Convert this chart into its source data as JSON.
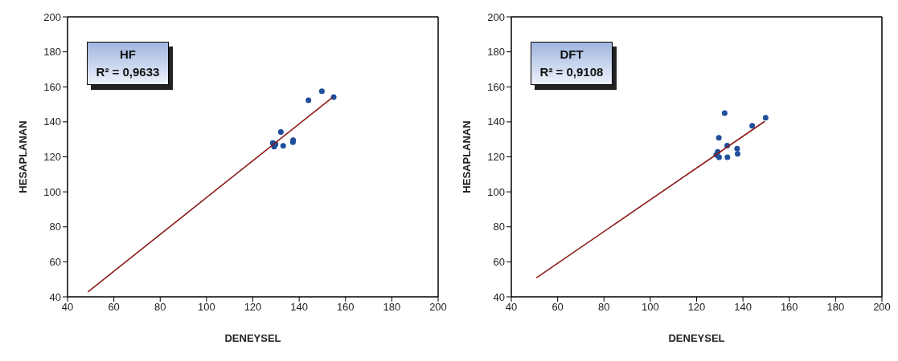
{
  "chart_data": [
    {
      "type": "scatter",
      "xlabel": "DENEYSEL",
      "ylabel": "HESAPLANAN",
      "xlim": [
        40,
        200
      ],
      "ylim": [
        40,
        200
      ],
      "xticks": [
        40,
        60,
        80,
        100,
        120,
        140,
        160,
        180,
        200
      ],
      "yticks": [
        40,
        60,
        80,
        100,
        120,
        140,
        160,
        180,
        200
      ],
      "annotations": [
        "HF",
        "R² = 0,9633"
      ],
      "series": [
        {
          "type": "scatter",
          "color": "#1f4e9a",
          "marker": "circle",
          "x": [
            144,
            149.8,
            154.9,
            132.1,
            128.6,
            129.2,
            129.8,
            133.1,
            137.3,
            137.4
          ],
          "values": [
            152.3,
            157.5,
            154.2,
            134.2,
            127.9,
            125.9,
            127.2,
            126.3,
            128.4,
            129.5
          ]
        },
        {
          "type": "line",
          "color": "#8b1a1a",
          "marker": "none",
          "x": [
            48.8,
            154.3
          ],
          "values": [
            42.8,
            153.9
          ]
        }
      ]
    },
    {
      "type": "scatter",
      "xlabel": "DENEYSEL",
      "ylabel": "HESAPLANAN",
      "xlim": [
        40,
        200
      ],
      "ylim": [
        40,
        200
      ],
      "xticks": [
        40,
        60,
        80,
        100,
        120,
        140,
        160,
        180,
        200
      ],
      "yticks": [
        40,
        60,
        80,
        100,
        120,
        140,
        160,
        180,
        200
      ],
      "annotations": [
        "DFT",
        "R² = 0,9108"
      ],
      "series": [
        {
          "type": "scatter",
          "color": "#1f4e9a",
          "marker": "circle",
          "x": [
            132.1,
            129.6,
            144,
            149.8,
            133.2,
            129.1,
            128.5,
            129.7,
            133.3,
            137.5,
            137.7
          ],
          "values": [
            145,
            130.9,
            137.8,
            142.3,
            126.4,
            122.9,
            121.1,
            119.8,
            119.8,
            124.7,
            121.7
          ]
        },
        {
          "type": "line",
          "color": "#8b1a1a",
          "marker": "none",
          "x": [
            50.8,
            149.4
          ],
          "values": [
            50.8,
            140.3
          ]
        }
      ]
    }
  ]
}
